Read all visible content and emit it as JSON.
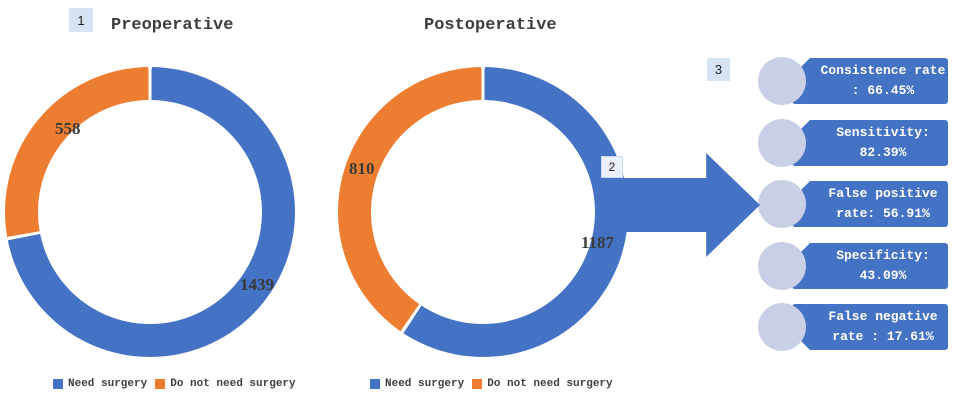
{
  "markers": {
    "one": "1",
    "two": "2",
    "three": "3"
  },
  "colors": {
    "blue": "#4472C4",
    "orange": "#ED7D31",
    "badge_circle": "#C9CFE7",
    "marker_bg": "#D5E3F2",
    "marker2_bg": "#EAF1FA",
    "text_dark": "#3D3D3D"
  },
  "chart_data": [
    {
      "type": "donut",
      "title": "Preoperative",
      "categories": [
        "Need surgery",
        "Do not need surgery"
      ],
      "values": [
        1439,
        558
      ],
      "colors": [
        "#4472C4",
        "#ED7D31"
      ],
      "start_angle": 0,
      "direction": "clockwise",
      "legend_position": "bottom-left",
      "data_labels": [
        "1439",
        "558"
      ]
    },
    {
      "type": "donut",
      "title": "Postoperative",
      "categories": [
        "Need surgery",
        "Do not need surgery"
      ],
      "values": [
        1187,
        810
      ],
      "colors": [
        "#4472C4",
        "#ED7D31"
      ],
      "start_angle": 0,
      "direction": "clockwise",
      "legend_position": "bottom-left",
      "data_labels": [
        "1187",
        "810"
      ]
    }
  ],
  "stats": [
    {
      "line1": "Consistence rate",
      "line2": ": 66.45%"
    },
    {
      "line1": "Sensitivity:",
      "line2": "82.39%"
    },
    {
      "line1": "False positive",
      "line2": "rate: 56.91%"
    },
    {
      "line1": "Specificity:",
      "line2": "43.09%"
    },
    {
      "line1": "False negative",
      "line2": "rate : 17.61%"
    }
  ]
}
